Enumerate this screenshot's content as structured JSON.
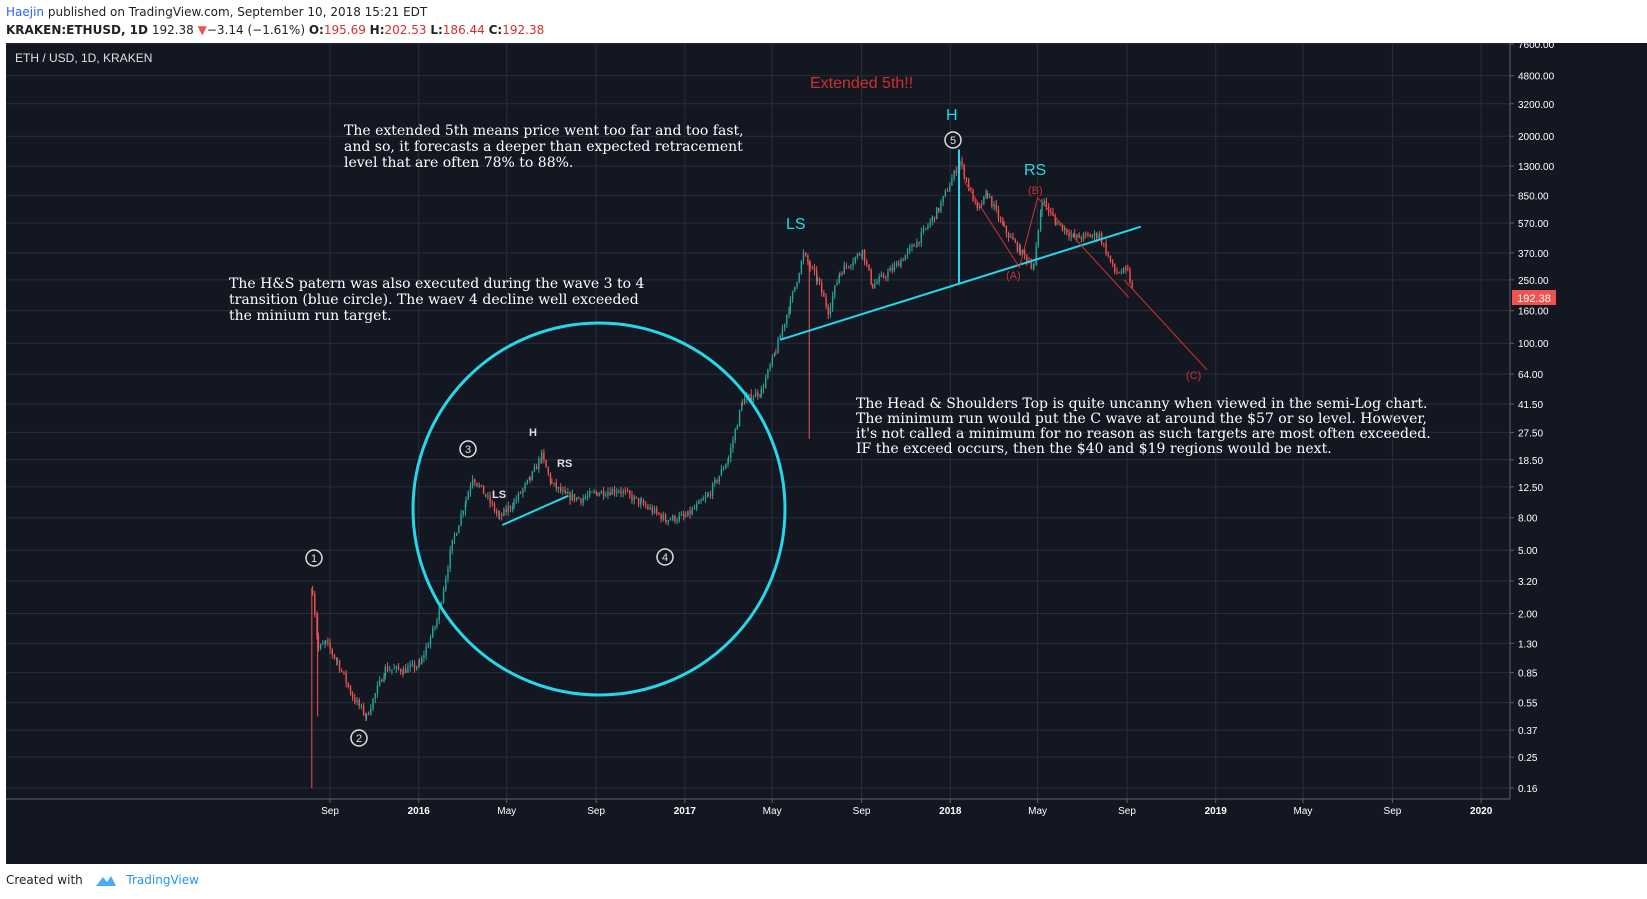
{
  "header": {
    "author": "Haejin",
    "published_text": " published on TradingView.com, September 10, 2018 15:21 EDT",
    "symbol": "KRAKEN:ETHUSD, 1D",
    "last": "192.38",
    "change_arrow": "▼",
    "change": "−3.14 (−1.61%)",
    "o_label": "O:",
    "o_value": "195.69",
    "h_label": "H:",
    "h_value": "202.53",
    "l_label": "L:",
    "l_value": "186.44",
    "c_label": "C:",
    "c_value": "192.38"
  },
  "footer": {
    "created_with": "Created with",
    "brand": "TradingView"
  },
  "colors": {
    "background": "#131722",
    "grid": "#2a2e39",
    "up": "#26a69a",
    "down": "#ef5350",
    "cyan": "#26d7e8",
    "red": "#d32f2f",
    "text": "#e0e0e0",
    "price_tag": "#ef5350"
  },
  "chart_data": {
    "type": "line",
    "title": "ETH / USD, 1D, KRAKEN",
    "y_scale": "log",
    "grid": true,
    "y_ticks": [
      "7600.00",
      "4800.00",
      "3200.00",
      "2000.00",
      "1300.00",
      "850.00",
      "570.00",
      "370.00",
      "250.00",
      "160.00",
      "100.00",
      "64.00",
      "41.50",
      "27.50",
      "18.50",
      "12.50",
      "8.00",
      "5.00",
      "3.20",
      "2.00",
      "1.30",
      "0.85",
      "0.55",
      "0.37",
      "0.25",
      "0.16"
    ],
    "x_ticks": [
      "Sep",
      "2016",
      "May",
      "Sep",
      "2017",
      "May",
      "Sep",
      "2018",
      "May",
      "Sep",
      "2019",
      "May",
      "Sep",
      "2020"
    ],
    "last_price_label": "192.38",
    "series": [
      {
        "x": [
          "2015-08-07",
          "2015-08-15",
          "2015-08-25",
          "2015-09-10",
          "2015-10-01",
          "2015-10-20",
          "2015-11-15",
          "2015-12-10",
          "2016-01-01",
          "2016-01-25",
          "2016-02-15",
          "2016-03-05",
          "2016-03-14",
          "2016-04-01",
          "2016-04-20",
          "2016-05-10",
          "2016-06-01",
          "2016-06-17",
          "2016-07-01",
          "2016-07-20",
          "2016-08-10",
          "2016-09-01",
          "2016-10-01",
          "2016-11-01",
          "2016-12-05",
          "2017-01-01",
          "2017-02-01",
          "2017-03-01",
          "2017-03-20",
          "2017-04-15",
          "2017-05-05",
          "2017-05-25",
          "2017-06-12",
          "2017-07-01",
          "2017-07-16",
          "2017-08-01",
          "2017-09-01",
          "2017-09-15",
          "2017-10-15",
          "2017-11-15",
          "2017-12-15",
          "2018-01-13",
          "2018-02-06",
          "2018-02-20",
          "2018-03-15",
          "2018-04-06",
          "2018-04-25",
          "2018-05-06",
          "2018-05-25",
          "2018-06-20",
          "2018-07-24",
          "2018-08-14",
          "2018-09-01",
          "2018-09-10"
        ],
        "y": [
          2.8,
          1.2,
          1.3,
          1.0,
          0.6,
          0.45,
          0.9,
          0.88,
          0.95,
          1.8,
          5.5,
          10.5,
          14.5,
          11.0,
          8.0,
          10.0,
          14.0,
          19.5,
          13.0,
          11.0,
          10.5,
          11.5,
          12.0,
          9.8,
          7.8,
          8.1,
          11.0,
          19.0,
          43.0,
          50.0,
          90.0,
          180.0,
          360.0,
          250.0,
          160.0,
          280.0,
          380.0,
          230.0,
          300.0,
          430.0,
          700.0,
          1390.0,
          680.0,
          870.0,
          520.0,
          380.0,
          300.0,
          800.0,
          580.0,
          460.0,
          480.0,
          280.0,
          280.0,
          192.38
        ]
      }
    ],
    "overlay_lines": [
      {
        "role": "neckline-major",
        "points": [
          [
            "2017-05-12",
            105
          ],
          [
            "2018-09-20",
            540
          ]
        ]
      },
      {
        "role": "head-height",
        "points": [
          [
            "2018-01-13",
            1650
          ],
          [
            "2018-01-13",
            240
          ]
        ]
      },
      {
        "role": "neckline-minor",
        "points": [
          [
            "2016-04-25",
            7.2
          ],
          [
            "2016-07-25",
            11
          ]
        ]
      },
      {
        "role": "abc-path",
        "points": [
          [
            "2018-01-20",
            1050
          ],
          [
            "2018-04-06",
            300
          ],
          [
            "2018-05-01",
            820
          ],
          [
            "2018-09-03",
            195
          ]
        ]
      },
      {
        "role": "c-projection",
        "points": [
          [
            "2018-08-28",
            250
          ],
          [
            "2018-12-20",
            68
          ]
        ]
      }
    ],
    "labels": {
      "extended": "Extended 5th!!",
      "big_h": "H",
      "big_ls": "LS",
      "big_rs": "RS",
      "small_h": "H",
      "small_ls": "LS",
      "small_rs": "RS",
      "wave_a": "(A)",
      "wave_b": "(B)",
      "wave_c": "(C)",
      "w1": "1",
      "w2": "2",
      "w3": "3",
      "w4": "4",
      "w5": "5"
    },
    "annotations": {
      "extended_text": [
        "The extended 5th means price went too far and too fast,",
        "and so, it forecasts a deeper than expected retracement",
        "level that are often 78% to 88%."
      ],
      "hs_text": [
        "The H&S patern was also executed during the wave 3 to 4",
        "transition (blue circle). The waev 4 decline well exceeded",
        "the minium run target."
      ],
      "top_text": [
        "The Head & Shoulders Top is quite uncanny when viewed in the semi-Log chart.",
        "The minimum run would put the C wave at around the $57 or so level. However,",
        "it's not called a minimum for no reason as such targets are most often exceeded.",
        "IF the exceed occurs, then the $40 and $19 regions would be next."
      ]
    }
  }
}
